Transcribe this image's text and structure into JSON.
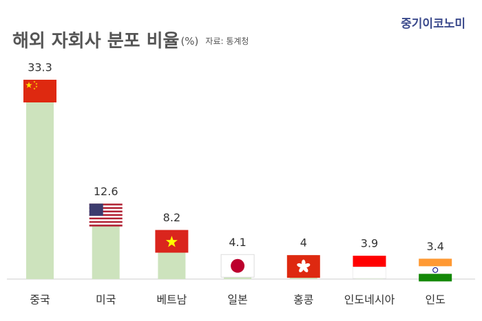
{
  "chart_data": {
    "type": "bar",
    "title": "해외 자회사 분포 비율",
    "unit": "(%)",
    "source": "자료: 통계청",
    "brand": "중기이코노미",
    "categories": [
      "중국",
      "미국",
      "베트남",
      "일본",
      "홍콩",
      "인도네시아",
      "인도"
    ],
    "values": [
      33.3,
      12.6,
      8.2,
      4.1,
      4,
      3.9,
      3.4
    ],
    "color": "#cde3bd"
  }
}
